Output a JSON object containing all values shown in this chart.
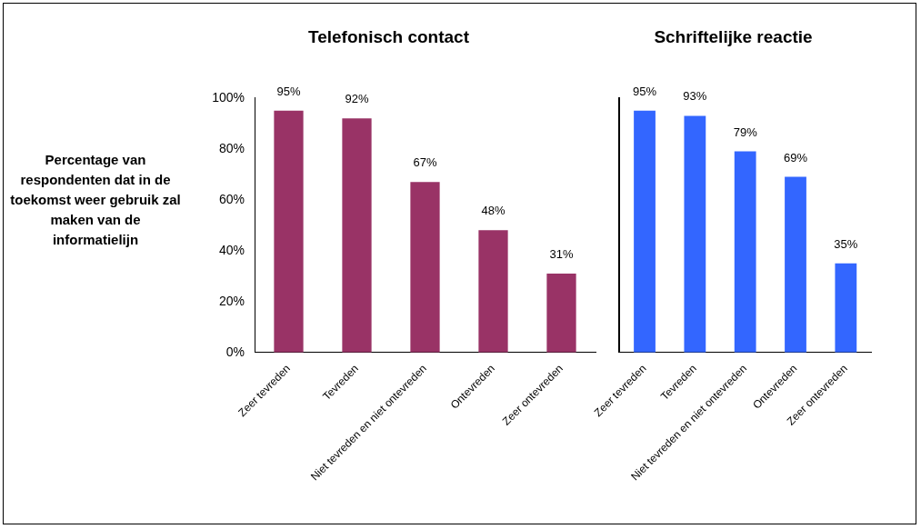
{
  "chart_data": [
    {
      "type": "bar",
      "title": "Telefonisch contact",
      "ylabel": "Percentage van respondenten dat in de toekomst weer gebruik zal maken van de informatielijn",
      "categories": [
        "Zeer tevreden",
        "Tevreden",
        "Niet tevreden en niet ontevreden",
        "Ontevreden",
        "Zeer ontevreden"
      ],
      "values": [
        95,
        92,
        67,
        48,
        31
      ],
      "color": "#993366",
      "value_labels": [
        "95%",
        "92%",
        "67%",
        "48%",
        "31%"
      ],
      "ylim": [
        0,
        100
      ],
      "yticks": [
        {
          "value": 0,
          "label": "0%"
        },
        {
          "value": 20,
          "label": "20%"
        },
        {
          "value": 40,
          "label": "40%"
        },
        {
          "value": 60,
          "label": "60%"
        },
        {
          "value": 80,
          "label": "80%"
        },
        {
          "value": 100,
          "label": "100%"
        }
      ],
      "grid": false,
      "legend": false
    },
    {
      "type": "bar",
      "title": "Schriftelijke reactie",
      "categories": [
        "Zeer tevreden",
        "Tevreden",
        "Niet tevreden en niet ontevreden",
        "Ontevreden",
        "Zeer ontevreden"
      ],
      "values": [
        95,
        93,
        79,
        69,
        35
      ],
      "color": "#3366ff",
      "value_labels": [
        "95%",
        "93%",
        "79%",
        "69%",
        "35%"
      ],
      "ylim": [
        0,
        100
      ],
      "tick_labels": "x",
      "grid": false,
      "legend": false
    }
  ]
}
